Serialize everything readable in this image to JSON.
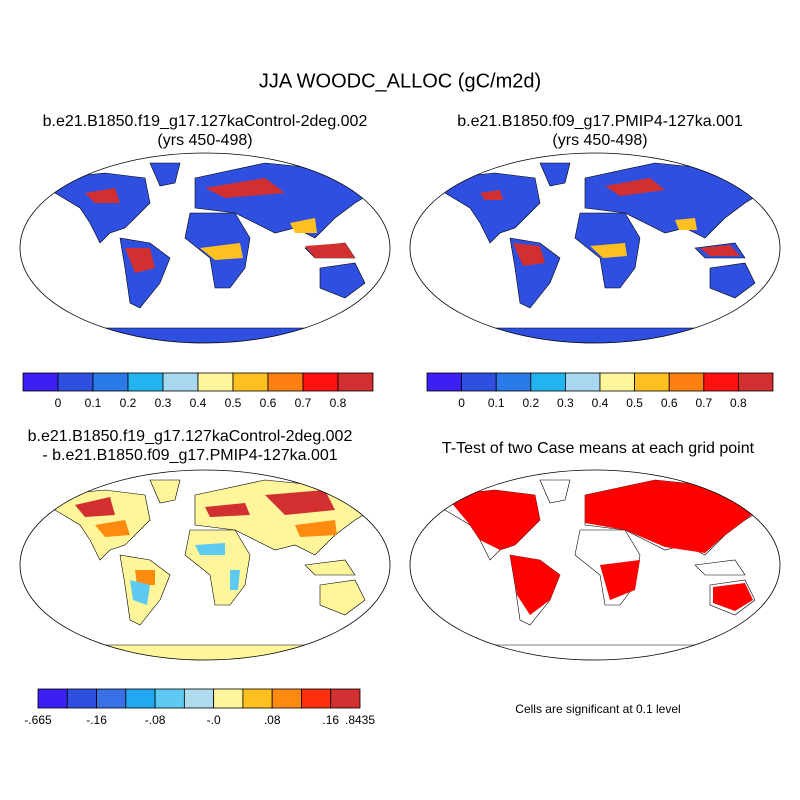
{
  "title": "JJA WOODC_ALLOC (gC/m2d)",
  "panels": [
    {
      "title_lines": [
        "b.e21.B1850.f19_g17.127kaControl-2deg.002",
        "(yrs 450-498)"
      ],
      "colorbar": {
        "colors": [
          "#3c1ff5",
          "#2f4fe0",
          "#2a7ae8",
          "#22b4f0",
          "#a8d8f0",
          "#fff59a",
          "#ffc020",
          "#ff7f10",
          "#ff1010",
          "#d23030"
        ],
        "ticks": [
          0,
          0.1,
          0.2,
          0.3,
          0.4,
          0.5,
          0.6,
          0.7,
          0.8
        ]
      }
    },
    {
      "title_lines": [
        "b.e21.B1850.f09_g17.PMIP4-127ka.001",
        "(yrs 450-498)"
      ],
      "colorbar": {
        "colors": [
          "#3c1ff5",
          "#2f4fe0",
          "#2a7ae8",
          "#22b4f0",
          "#a8d8f0",
          "#fff59a",
          "#ffc020",
          "#ff7f10",
          "#ff1010",
          "#d23030"
        ],
        "ticks": [
          0,
          0.1,
          0.2,
          0.3,
          0.4,
          0.5,
          0.6,
          0.7,
          0.8
        ]
      }
    },
    {
      "title_lines": [
        "b.e21.B1850.f19_g17.127kaControl-2deg.002",
        "- b.e21.B1850.f09_g17.PMIP4-127ka.001"
      ],
      "colorbar": {
        "colors": [
          "#3c1ff5",
          "#2f4fe0",
          "#3a70e6",
          "#22a8f0",
          "#5ccaf2",
          "#b0dcf0",
          "#fff59a",
          "#ffc020",
          "#ff8a10",
          "#ff3010",
          "#d23030"
        ],
        "ticks": [
          {
            "value": -0.665,
            "label": "-.665"
          },
          {
            "value": -0.16,
            "label": "-.16"
          },
          {
            "value": -0.08,
            "label": "-.08"
          },
          {
            "value": 0,
            "label": "-.0"
          },
          {
            "value": 0.08,
            "label": ".08"
          },
          {
            "value": 0.16,
            "label": ".16"
          },
          {
            "value": 0.8435,
            "label": ".8435"
          }
        ]
      }
    },
    {
      "title_lines": [
        "T-Test of two Case means at each grid point"
      ],
      "note": "Cells are significant at 0.1 level"
    }
  ]
}
